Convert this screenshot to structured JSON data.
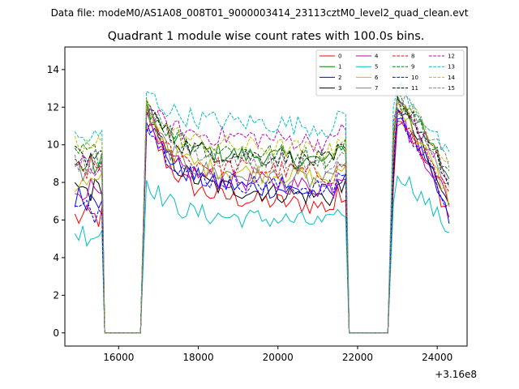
{
  "chart_data": {
    "type": "line",
    "suptitle": "Data file: modeM0/AS1A08_008T01_9000003414_23113cztM0_level2_quad_clean.evt",
    "title": "Quadrant 1 module wise count rates with 100.0s bins.",
    "xlabel": "",
    "ylabel": "",
    "x_offset_label": "+3.16e8",
    "xlim": [
      14650,
      24750
    ],
    "ylim": [
      -0.7,
      15.2
    ],
    "x_ticks": [
      16000,
      18000,
      20000,
      22000,
      24000
    ],
    "x_tick_labels": [
      "16000",
      "18000",
      "20000",
      "22000",
      "24000"
    ],
    "y_ticks": [
      0,
      2,
      4,
      6,
      8,
      10,
      12,
      14
    ],
    "y_tick_labels": [
      "0",
      "2",
      "4",
      "6",
      "8",
      "10",
      "12",
      "14"
    ],
    "legend_position": "upper-right",
    "segments": [
      {
        "start": 14900,
        "end": 15600
      },
      {
        "start": 15600,
        "end": 16600,
        "zero": true
      },
      {
        "start": 16700,
        "end": 21700
      },
      {
        "start": 21750,
        "end": 22800,
        "zero": true
      },
      {
        "start": 22900,
        "end": 24300
      }
    ],
    "series": [
      {
        "name": "0",
        "color": "#ff0000",
        "dash": "solid",
        "level": 6.6,
        "peak": 11.5,
        "start1": 6.1,
        "end3": 6.2
      },
      {
        "name": "1",
        "color": "#008000",
        "dash": "solid",
        "level": 9.0,
        "peak": 12.3,
        "start1": 8.9,
        "end3": 8.2
      },
      {
        "name": "2",
        "color": "#0000ff",
        "dash": "solid",
        "level": 7.3,
        "peak": 11.6,
        "start1": 7.2,
        "end3": 6.0
      },
      {
        "name": "3",
        "color": "#000000",
        "dash": "solid",
        "level": 7.1,
        "peak": 11.9,
        "start1": 7.6,
        "end3": 6.6
      },
      {
        "name": "4",
        "color": "#bf00bf",
        "dash": "solid",
        "level": 7.6,
        "peak": 11.1,
        "start1": 7.7,
        "end3": 7.0
      },
      {
        "name": "5",
        "color": "#00bfbf",
        "dash": "solid",
        "level": 5.7,
        "peak": 8.2,
        "start1": 5.3,
        "end3": 5.4
      },
      {
        "name": "6",
        "color": "#bfbf00",
        "dash": "solid",
        "level": 8.1,
        "peak": 11.8,
        "start1": 7.9,
        "end3": 7.1
      },
      {
        "name": "7",
        "color": "#808080",
        "dash": "solid",
        "level": 7.9,
        "peak": 11.8,
        "start1": 8.6,
        "end3": 7.6
      },
      {
        "name": "8",
        "color": "#ff0000",
        "dash": "dashed",
        "level": 8.3,
        "peak": 11.3,
        "start1": 8.7,
        "end3": 7.1
      },
      {
        "name": "9",
        "color": "#008000",
        "dash": "dashed",
        "level": 9.2,
        "peak": 12.4,
        "start1": 9.5,
        "end3": 8.4
      },
      {
        "name": "10",
        "color": "#0000ff",
        "dash": "dashed",
        "level": 7.5,
        "peak": 11.4,
        "start1": 6.5,
        "end3": 6.6
      },
      {
        "name": "11",
        "color": "#000000",
        "dash": "dashed",
        "level": 9.0,
        "peak": 12.2,
        "start1": 9.3,
        "end3": 7.9
      },
      {
        "name": "12",
        "color": "#bf00bf",
        "dash": "dashed",
        "level": 10.0,
        "peak": 12.0,
        "start1": 8.8,
        "end3": 8.2
      },
      {
        "name": "13",
        "color": "#00bfbf",
        "dash": "dashed",
        "level": 10.8,
        "peak": 12.9,
        "start1": 10.3,
        "end3": 9.2
      },
      {
        "name": "14",
        "color": "#bfbf00",
        "dash": "dashed",
        "level": 9.5,
        "peak": 12.1,
        "start1": 9.9,
        "end3": 9.2
      },
      {
        "name": "15",
        "color": "#808080",
        "dash": "dashed",
        "level": 8.7,
        "peak": 12.4,
        "start1": 9.1,
        "end3": 8.9
      }
    ]
  }
}
